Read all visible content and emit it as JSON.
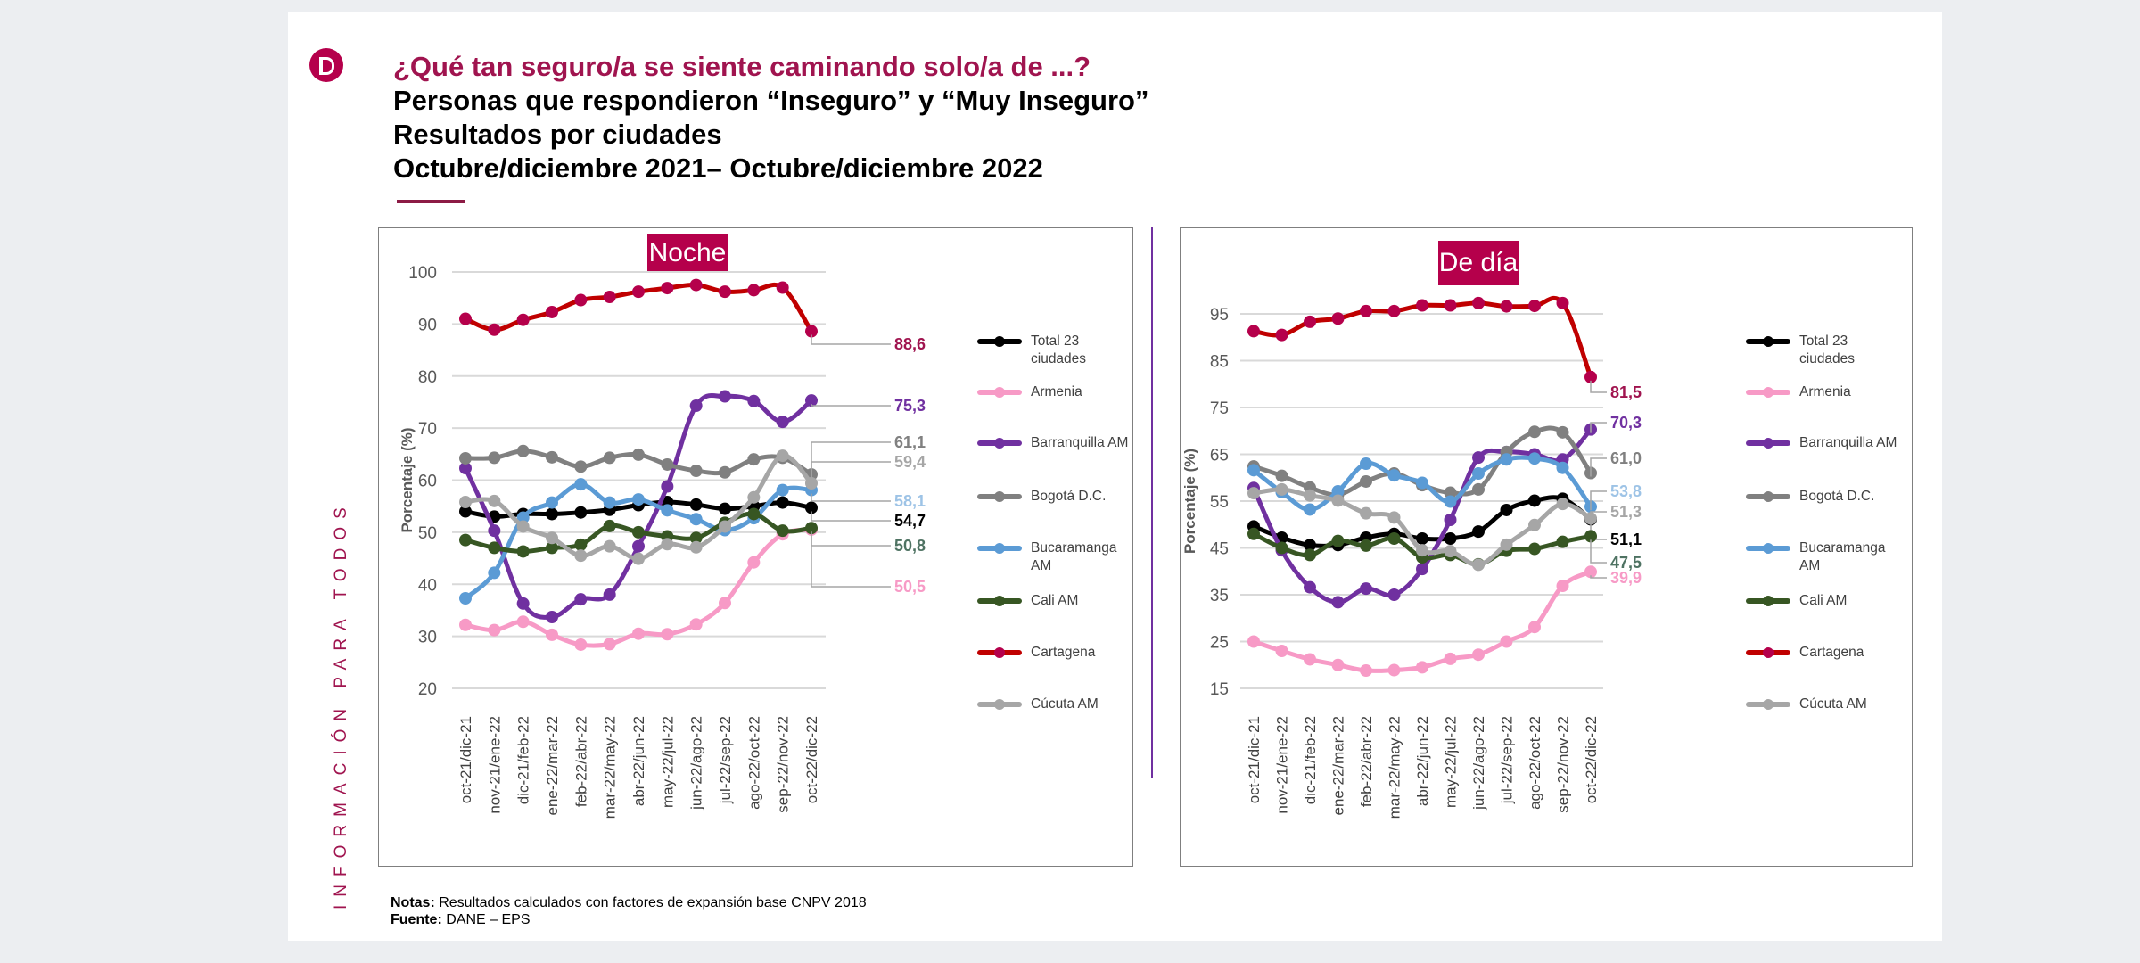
{
  "header": {
    "question": "¿Qué tan seguro/a se siente caminando solo/a de ...?",
    "line2": "Personas que respondieron “Inseguro” y “Muy Inseguro”",
    "line3": "Resultados por ciudades",
    "line4": "Octubre/diciembre 2021– Octubre/diciembre 2022"
  },
  "side_text": "INFORMACIÓN PARA TODOS",
  "notes": {
    "label": "Notas:",
    "text": " Resultados calculados con factores de expansión base CNPV 2018"
  },
  "source": {
    "label": "Fuente:",
    "text": " DANE – EPS"
  },
  "colors": {
    "brand": "#b5004b",
    "Total 23 ciudades": "#000000",
    "Armenia": "#f79ac6",
    "Barranquilla AM": "#7030a0",
    "Bogotá D.C.": "#808080",
    "Bucaramanga AM": "#5b9bd5",
    "Cali AM": "#375623",
    "Cartagena": "#c00000",
    "Cúcuta AM": "#a6a6a6"
  },
  "chart_data": [
    {
      "type": "line",
      "title": "Noche",
      "ylabel": "Porcentaje  (%)",
      "ylim": [
        20,
        100
      ],
      "yticks": [
        20,
        30,
        40,
        50,
        60,
        70,
        80,
        90,
        100
      ],
      "grid": true,
      "legend": "right",
      "categories": [
        "oct-21/dic-21",
        "nov-21/ene-22",
        "dic-21/feb-22",
        "ene-22/mar-22",
        "feb-22/abr-22",
        "mar-22/may-22",
        "abr-22/jun-22",
        "may-22/jul-22",
        "jun-22/ago-22",
        "jul-22/sep-22",
        "ago-22/oct-22",
        "sep-22/nov-22",
        "oct-22/dic-22"
      ],
      "series": [
        {
          "name": "Total 23 ciudades",
          "values": [
            54.0,
            53.0,
            53.5,
            53.5,
            53.8,
            54.3,
            55.2,
            55.8,
            55.3,
            54.5,
            55.0,
            55.7,
            54.7
          ],
          "end_label": "54,7"
        },
        {
          "name": "Armenia",
          "values": [
            32.2,
            31.2,
            32.8,
            30.3,
            28.4,
            28.5,
            30.5,
            30.4,
            32.3,
            36.4,
            44.2,
            49.6,
            50.5
          ],
          "end_label": "50,5"
        },
        {
          "name": "Barranquilla AM",
          "values": [
            62.3,
            50.3,
            36.3,
            33.7,
            37.1,
            38.0,
            47.3,
            58.8,
            74.3,
            76.1,
            75.2,
            71.2,
            75.3
          ],
          "end_label": "75,3"
        },
        {
          "name": "Bogotá D.C.",
          "values": [
            64.2,
            64.3,
            65.6,
            64.4,
            62.6,
            64.3,
            64.9,
            63.0,
            61.8,
            61.5,
            64.0,
            64.3,
            61.1
          ],
          "end_label": "61,1"
        },
        {
          "name": "Bucaramanga AM",
          "values": [
            37.3,
            42.2,
            52.8,
            55.7,
            59.2,
            55.7,
            56.3,
            54.2,
            52.5,
            50.4,
            52.7,
            58.1,
            58.1
          ],
          "end_label": "58,1"
        },
        {
          "name": "Cali AM",
          "values": [
            48.5,
            47.0,
            46.3,
            47.0,
            47.6,
            51.2,
            50.0,
            49.2,
            48.9,
            51.8,
            53.5,
            50.3,
            50.8
          ],
          "end_label": "50,8"
        },
        {
          "name": "Cartagena",
          "values": [
            91.0,
            88.9,
            90.8,
            92.3,
            94.6,
            95.2,
            96.2,
            96.9,
            97.5,
            96.2,
            96.5,
            97.0,
            88.6
          ],
          "end_label": "88,6"
        },
        {
          "name": "Cúcuta AM",
          "values": [
            55.8,
            56.0,
            51.1,
            48.9,
            45.5,
            47.3,
            44.9,
            47.7,
            47.1,
            51.1,
            56.7,
            64.7,
            59.4
          ],
          "end_label": "59,4"
        }
      ]
    },
    {
      "type": "line",
      "title": "De día",
      "ylabel": "Porcentaje (%)",
      "ylim": [
        15,
        95
      ],
      "yticks": [
        15,
        25,
        35,
        45,
        55,
        65,
        75,
        85,
        95
      ],
      "grid": true,
      "legend": "right",
      "categories": [
        "oct-21/dic-21",
        "nov-21/ene-22",
        "dic-21/feb-22",
        "ene-22/mar-22",
        "feb-22/abr-22",
        "mar-22/may-22",
        "abr-22/jun-22",
        "may-22/jul-22",
        "jun-22/ago-22",
        "jul-22/sep-22",
        "ago-22/oct-22",
        "sep-22/nov-22",
        "oct-22/dic-22"
      ],
      "series": [
        {
          "name": "Total 23 ciudades",
          "values": [
            49.6,
            47.2,
            45.6,
            45.6,
            47.2,
            48.0,
            47.0,
            47.0,
            48.5,
            53.1,
            55.1,
            55.5,
            51.1
          ],
          "end_label": "51,1"
        },
        {
          "name": "Armenia",
          "values": [
            25.0,
            23.0,
            21.2,
            20.0,
            18.8,
            18.9,
            19.5,
            21.3,
            22.2,
            25.0,
            28.1,
            36.9,
            39.9
          ],
          "end_label": "39,9"
        },
        {
          "name": "Barranquilla AM",
          "values": [
            57.8,
            44.5,
            36.6,
            33.4,
            36.3,
            35.0,
            40.5,
            51.0,
            64.3,
            65.5,
            65.0,
            63.9,
            70.3
          ],
          "end_label": "70,3"
        },
        {
          "name": "Bogotá D.C.",
          "values": [
            62.4,
            60.4,
            57.9,
            56.4,
            59.2,
            60.9,
            58.4,
            56.8,
            57.5,
            65.5,
            69.8,
            69.7,
            61.0
          ],
          "end_label": "61,0"
        },
        {
          "name": "Bucaramanga AM",
          "values": [
            61.6,
            56.9,
            53.2,
            57.1,
            63.0,
            60.5,
            58.9,
            54.9,
            60.9,
            63.9,
            64.1,
            62.1,
            53.8
          ],
          "end_label": "53,8"
        },
        {
          "name": "Cali AM",
          "values": [
            48.0,
            45.0,
            43.5,
            46.5,
            45.5,
            47.0,
            43.0,
            43.5,
            41.5,
            44.4,
            44.8,
            46.3,
            47.5
          ],
          "end_label": "47,5"
        },
        {
          "name": "Cartagena",
          "values": [
            91.3,
            90.5,
            93.3,
            94.0,
            95.6,
            95.6,
            96.8,
            96.8,
            97.3,
            96.6,
            96.7,
            97.3,
            81.5
          ],
          "end_label": "81,5"
        },
        {
          "name": "Cúcuta AM",
          "values": [
            56.7,
            57.5,
            56.2,
            55.1,
            52.4,
            51.5,
            44.5,
            44.3,
            41.4,
            45.7,
            49.9,
            54.4,
            51.3
          ],
          "end_label": "51,3"
        }
      ]
    }
  ]
}
